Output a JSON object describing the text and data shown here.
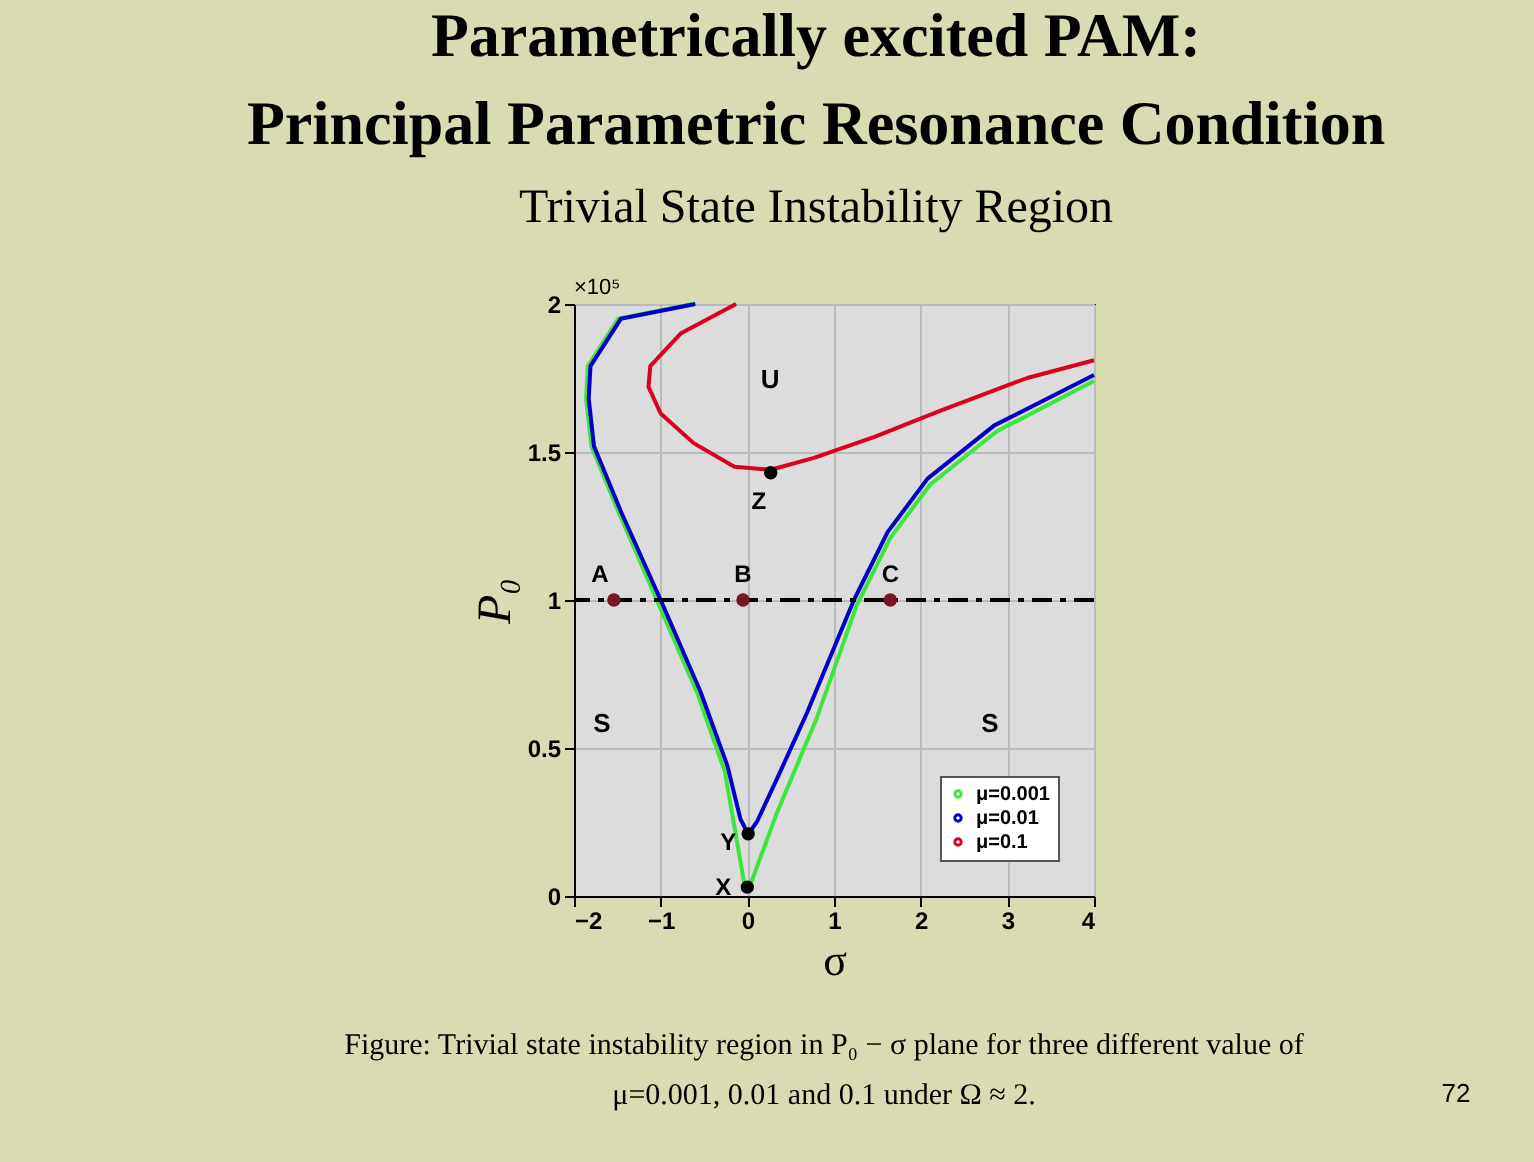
{
  "chart_data": {
    "type": "line",
    "title": "Parametrically excited PAM:\nPrincipal Parametric Resonance Condition",
    "subtitle": "Trivial State Instability Region",
    "xlabel": "σ",
    "ylabel": "P₀",
    "xlim": [
      -2,
      4
    ],
    "xticks": [
      -2,
      -1,
      0,
      1,
      2,
      3,
      4
    ],
    "ylim": [
      0,
      2
    ],
    "yticks": [
      0,
      0.5,
      1,
      1.5,
      2
    ],
    "grid": true,
    "legend": "bottom right",
    "line_style": "solid",
    "series": [
      {
        "name": "μ=0.001",
        "color": "#3ce63c",
        "x": [
          -0.63,
          -1.49,
          -1.84,
          -1.86,
          -1.8,
          -1.49,
          -1.03,
          -0.57,
          -0.26,
          -0.04,
          0.0,
          0.05,
          0.34,
          0.8,
          1.26,
          1.65,
          2.11,
          2.88,
          4.0
        ],
        "values": [
          2.0,
          1.95,
          1.79,
          1.68,
          1.52,
          1.3,
          0.99,
          0.68,
          0.42,
          0.05,
          0.02,
          0.05,
          0.28,
          0.6,
          0.98,
          1.21,
          1.39,
          1.57,
          1.74
        ]
      },
      {
        "name": "μ=0.01",
        "color": "#0000c8",
        "x": [
          -0.6,
          -1.46,
          -1.81,
          -1.83,
          -1.77,
          -1.46,
          -1.0,
          -0.54,
          -0.23,
          -0.08,
          0.01,
          0.11,
          0.38,
          0.69,
          1.23,
          1.62,
          2.08,
          2.85,
          4.0
        ],
        "values": [
          2.0,
          1.95,
          1.79,
          1.68,
          1.52,
          1.3,
          1.0,
          0.69,
          0.44,
          0.26,
          0.21,
          0.25,
          0.42,
          0.62,
          1.0,
          1.23,
          1.41,
          1.59,
          1.76
        ]
      },
      {
        "name": "μ=0.1",
        "color": "#dc0020",
        "x": [
          -0.13,
          -0.77,
          -1.12,
          -1.14,
          -1.0,
          -0.62,
          -0.15,
          0.27,
          0.77,
          1.46,
          2.23,
          3.23,
          4.0
        ],
        "values": [
          2.0,
          1.9,
          1.79,
          1.72,
          1.63,
          1.53,
          1.45,
          1.44,
          1.48,
          1.55,
          1.64,
          1.75,
          1.81
        ]
      },
      {
        "type": "scatter",
        "color": "#7b1428",
        "x": [
          -1.54,
          -0.05,
          1.65
        ],
        "values": [
          1,
          1,
          1
        ]
      },
      {
        "type": "scatter",
        "color": "#000000",
        "x": [
          0.27,
          0.01,
          0.0
        ],
        "values": [
          1.43,
          0.21,
          0.03
        ]
      }
    ],
    "ref_lines": [
      {
        "axis": "y",
        "value": 1,
        "color": "#000000",
        "line_style": "dashed"
      }
    ],
    "annotations": [
      "×10⁵",
      {
        "text": "A",
        "x": -1.54,
        "y": 1
      },
      {
        "text": "B",
        "x": -0.05,
        "y": 1
      },
      {
        "text": "C",
        "x": 1.65,
        "y": 1
      },
      {
        "text": "Z",
        "x": 0.27,
        "y": 1.43
      },
      {
        "text": "Y",
        "x": 0.01,
        "y": 0.21
      },
      {
        "text": "X",
        "x": 0.0,
        "y": 0.03
      },
      "U",
      "S",
      "S",
      "Figure: Trivial state instability region in P₀ − σ plane for three different value of",
      "μ=0.001, 0.01 and 0.1 under Ω ≈ 2.",
      "72"
    ]
  }
}
